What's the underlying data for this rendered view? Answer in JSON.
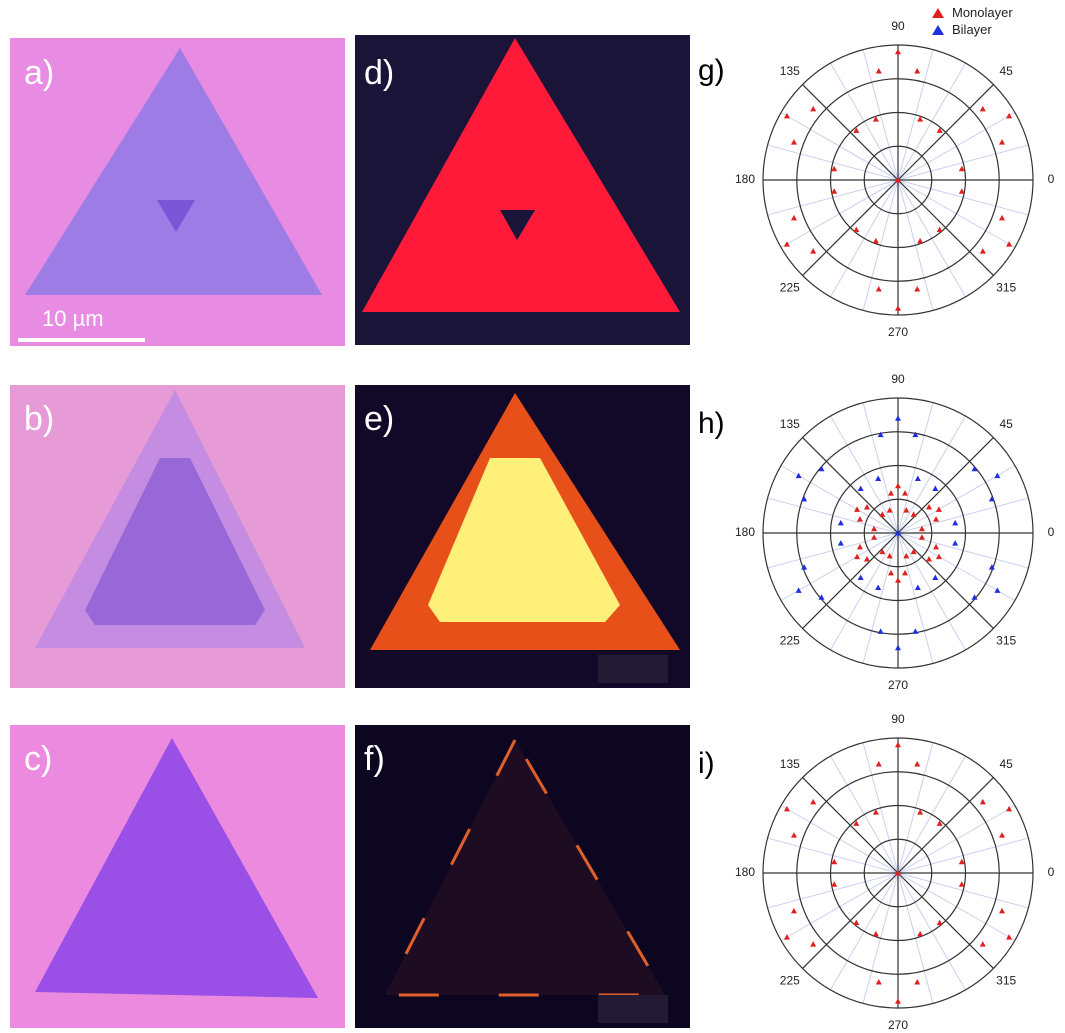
{
  "panels": [
    {
      "label": "a)"
    },
    {
      "label": "b)"
    },
    {
      "label": "c)"
    },
    {
      "label": "d)"
    },
    {
      "label": "e)"
    },
    {
      "label": "f)"
    }
  ],
  "scale_bar": "10 µm",
  "chart_data": [
    {
      "type": "polar",
      "label": "g)",
      "theta": [
        0,
        10,
        20,
        30,
        40,
        50,
        60,
        70,
        80,
        90,
        100,
        110,
        120,
        130,
        140,
        150,
        160,
        170,
        180,
        190,
        200,
        210,
        220,
        230,
        240,
        250,
        260,
        270,
        280,
        290,
        300,
        310,
        320,
        330,
        340,
        350
      ],
      "series": [
        {
          "name": "Monolayer",
          "color": "#e0201e",
          "values": [
            0,
            0.48,
            0.82,
            0.95,
            0.82,
            0.48,
            0,
            0.48,
            0.82,
            0.95,
            0.82,
            0.48,
            0,
            0.48,
            0.82,
            0.95,
            0.82,
            0.48,
            0,
            0.48,
            0.82,
            0.95,
            0.82,
            0.48,
            0,
            0.48,
            0.82,
            0.95,
            0.82,
            0.48,
            0,
            0.48,
            0.82,
            0.95,
            0.82,
            0.48
          ]
        }
      ],
      "rlim": [
        0,
        1
      ],
      "rticks": [
        0.25,
        0.5,
        0.75,
        1
      ],
      "thetaticks": [
        0,
        45,
        90,
        135,
        180,
        225,
        270,
        315
      ]
    },
    {
      "type": "polar",
      "label": "h)",
      "theta": [
        0,
        10,
        20,
        30,
        40,
        50,
        60,
        70,
        80,
        90,
        100,
        110,
        120,
        130,
        140,
        150,
        160,
        170,
        180,
        190,
        200,
        210,
        220,
        230,
        240,
        250,
        260,
        270,
        280,
        290,
        300,
        310,
        320,
        330,
        340,
        350
      ],
      "series": [
        {
          "name": "Monolayer",
          "color": "#e0201e",
          "values": [
            0,
            0.18,
            0.3,
            0.35,
            0.3,
            0.18,
            0,
            0.18,
            0.3,
            0.35,
            0.3,
            0.18,
            0,
            0.18,
            0.3,
            0.35,
            0.3,
            0.18,
            0,
            0.18,
            0.3,
            0.35,
            0.3,
            0.18,
            0,
            0.18,
            0.3,
            0.35,
            0.3,
            0.18,
            0,
            0.18,
            0.3,
            0.35,
            0.3,
            0.18
          ]
        },
        {
          "name": "Bilayer",
          "color": "#1e2ee0",
          "values": [
            0,
            0.43,
            0.74,
            0.85,
            0.74,
            0.43,
            0,
            0.43,
            0.74,
            0.85,
            0.74,
            0.43,
            0,
            0.43,
            0.74,
            0.85,
            0.74,
            0.43,
            0,
            0.43,
            0.74,
            0.85,
            0.74,
            0.43,
            0,
            0.43,
            0.74,
            0.85,
            0.74,
            0.43,
            0,
            0.43,
            0.74,
            0.85,
            0.74,
            0.43
          ]
        }
      ],
      "rlim": [
        0,
        1
      ],
      "rticks": [
        0.25,
        0.5,
        0.75,
        1
      ],
      "thetaticks": [
        0,
        45,
        90,
        135,
        180,
        225,
        270,
        315
      ]
    },
    {
      "type": "polar",
      "label": "i)",
      "theta": [
        0,
        10,
        20,
        30,
        40,
        50,
        60,
        70,
        80,
        90,
        100,
        110,
        120,
        130,
        140,
        150,
        160,
        170,
        180,
        190,
        200,
        210,
        220,
        230,
        240,
        250,
        260,
        270,
        280,
        290,
        300,
        310,
        320,
        330,
        340,
        350
      ],
      "series": [
        {
          "name": "Monolayer",
          "color": "#e0201e",
          "values": [
            0,
            0.48,
            0.82,
            0.95,
            0.82,
            0.48,
            0,
            0.48,
            0.82,
            0.95,
            0.82,
            0.48,
            0,
            0.48,
            0.82,
            0.95,
            0.82,
            0.48,
            0,
            0.48,
            0.82,
            0.95,
            0.82,
            0.48,
            0,
            0.48,
            0.82,
            0.95,
            0.82,
            0.48,
            0,
            0.48,
            0.82,
            0.95,
            0.82,
            0.48
          ]
        }
      ],
      "rlim": [
        0,
        1
      ],
      "rticks": [
        0.25,
        0.5,
        0.75,
        1
      ],
      "thetaticks": [
        0,
        45,
        90,
        135,
        180,
        225,
        270,
        315
      ]
    }
  ]
}
